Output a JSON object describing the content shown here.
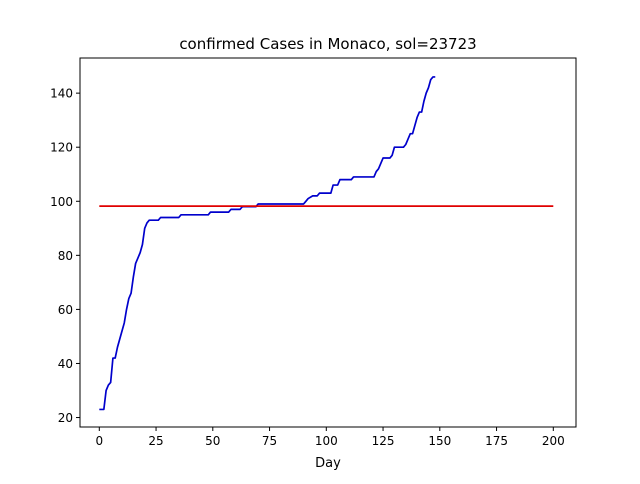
{
  "chart_data": {
    "type": "line",
    "title": "confirmed Cases in Monaco, sol=23723",
    "xlabel": "Day",
    "ylabel": "",
    "xlim": [
      -8.5,
      210
    ],
    "ylim": [
      16.5,
      153
    ],
    "x_ticks": [
      0,
      25,
      50,
      75,
      100,
      125,
      150,
      175,
      200
    ],
    "x_tick_labels": [
      "0",
      "25",
      "50",
      "75",
      "100",
      "125",
      "150",
      "175",
      "200"
    ],
    "y_ticks": [
      20,
      40,
      60,
      80,
      100,
      120,
      140
    ],
    "y_tick_labels": [
      "20",
      "40",
      "60",
      "80",
      "100",
      "120",
      "140"
    ],
    "grid": false,
    "series": [
      {
        "color": "#0000cc",
        "points": [
          [
            0,
            23
          ],
          [
            1,
            23
          ],
          [
            2,
            23
          ],
          [
            3,
            30
          ],
          [
            4,
            32
          ],
          [
            5,
            33
          ],
          [
            6,
            42
          ],
          [
            7,
            42
          ],
          [
            8,
            46
          ],
          [
            9,
            49
          ],
          [
            10,
            52
          ],
          [
            11,
            55
          ],
          [
            12,
            60
          ],
          [
            13,
            64
          ],
          [
            14,
            66
          ],
          [
            15,
            72
          ],
          [
            16,
            77
          ],
          [
            17,
            79
          ],
          [
            18,
            81
          ],
          [
            19,
            84
          ],
          [
            20,
            90
          ],
          [
            21,
            92
          ],
          [
            22,
            93
          ],
          [
            23,
            93
          ],
          [
            26,
            93
          ],
          [
            27,
            94
          ],
          [
            35,
            94
          ],
          [
            36,
            95
          ],
          [
            48,
            95
          ],
          [
            49,
            96
          ],
          [
            57,
            96
          ],
          [
            58,
            97
          ],
          [
            62,
            97
          ],
          [
            63,
            98
          ],
          [
            69,
            98
          ],
          [
            70,
            99
          ],
          [
            90,
            99
          ],
          [
            91,
            100
          ],
          [
            92,
            101
          ],
          [
            94,
            102
          ],
          [
            96,
            102
          ],
          [
            97,
            103
          ],
          [
            102,
            103
          ],
          [
            103,
            106
          ],
          [
            105,
            106
          ],
          [
            106,
            108
          ],
          [
            111,
            108
          ],
          [
            112,
            109
          ],
          [
            121,
            109
          ],
          [
            122,
            111
          ],
          [
            123,
            112
          ],
          [
            124,
            114
          ],
          [
            125,
            116
          ],
          [
            128,
            116
          ],
          [
            129,
            117
          ],
          [
            130,
            120
          ],
          [
            134,
            120
          ],
          [
            135,
            121
          ],
          [
            136,
            123
          ],
          [
            137,
            125
          ],
          [
            138,
            125
          ],
          [
            139,
            128
          ],
          [
            140,
            131
          ],
          [
            141,
            133
          ],
          [
            142,
            133
          ],
          [
            143,
            137
          ],
          [
            144,
            140
          ],
          [
            145,
            142
          ],
          [
            146,
            145
          ],
          [
            147,
            146
          ],
          [
            148,
            146
          ]
        ]
      },
      {
        "color": "#e00000",
        "points": [
          [
            0,
            98.2
          ],
          [
            200,
            98.2
          ]
        ]
      }
    ]
  }
}
